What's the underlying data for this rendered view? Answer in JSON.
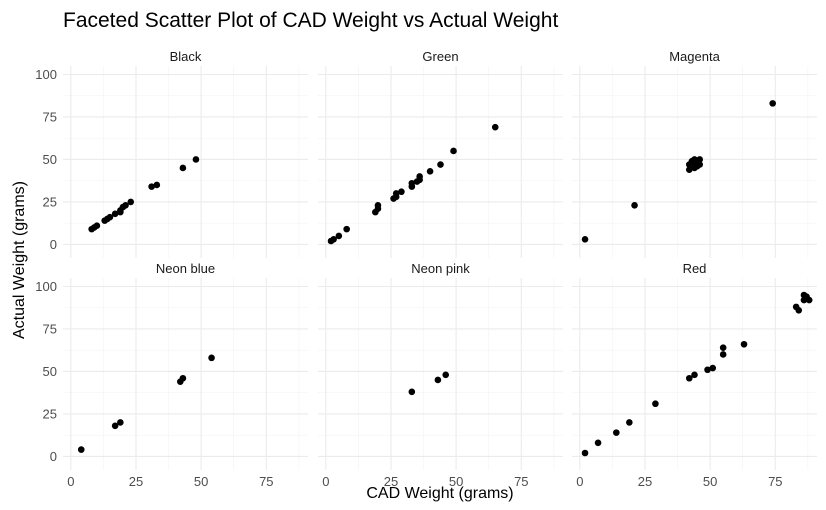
{
  "chart_data": {
    "type": "scatter",
    "title": "Faceted Scatter Plot of CAD Weight vs Actual Weight",
    "xlabel": "CAD Weight (grams)",
    "ylabel": "Actual Weight (grams)",
    "xlim": [
      -3,
      91
    ],
    "ylim": [
      -8,
      105
    ],
    "xticks": [
      0,
      25,
      50,
      75
    ],
    "yticks": [
      0,
      25,
      50,
      75,
      100
    ],
    "grid": true,
    "point_color": "#000000",
    "facets": [
      {
        "name": "Black",
        "points": [
          [
            8,
            9
          ],
          [
            9,
            10
          ],
          [
            10,
            11
          ],
          [
            13,
            14
          ],
          [
            14,
            15
          ],
          [
            15,
            16
          ],
          [
            17,
            18
          ],
          [
            19,
            19
          ],
          [
            19,
            20
          ],
          [
            20,
            22
          ],
          [
            21,
            23
          ],
          [
            23,
            25
          ],
          [
            31,
            34
          ],
          [
            33,
            35
          ],
          [
            43,
            45
          ],
          [
            48,
            50
          ]
        ]
      },
      {
        "name": "Green",
        "points": [
          [
            2,
            2
          ],
          [
            3,
            3
          ],
          [
            5,
            5
          ],
          [
            8,
            9
          ],
          [
            19,
            19
          ],
          [
            20,
            21
          ],
          [
            20,
            23
          ],
          [
            26,
            27
          ],
          [
            27,
            28
          ],
          [
            27,
            30
          ],
          [
            29,
            31
          ],
          [
            33,
            34
          ],
          [
            33,
            36
          ],
          [
            35,
            37
          ],
          [
            36,
            38
          ],
          [
            36,
            40
          ],
          [
            40,
            43
          ],
          [
            44,
            47
          ],
          [
            49,
            55
          ],
          [
            65,
            69
          ]
        ]
      },
      {
        "name": "Magenta",
        "points": [
          [
            2,
            3
          ],
          [
            21,
            23
          ],
          [
            42,
            44
          ],
          [
            42,
            47
          ],
          [
            43,
            46
          ],
          [
            43,
            49
          ],
          [
            44,
            45
          ],
          [
            44,
            48
          ],
          [
            44,
            50
          ],
          [
            45,
            46
          ],
          [
            46,
            47
          ],
          [
            46,
            50
          ],
          [
            74,
            83
          ]
        ]
      },
      {
        "name": "Neon blue",
        "points": [
          [
            4,
            4
          ],
          [
            17,
            18
          ],
          [
            19,
            20
          ],
          [
            42,
            44
          ],
          [
            43,
            46
          ],
          [
            54,
            58
          ]
        ]
      },
      {
        "name": "Neon pink",
        "points": [
          [
            33,
            38
          ],
          [
            43,
            45
          ],
          [
            46,
            48
          ]
        ]
      },
      {
        "name": "Red",
        "points": [
          [
            2,
            2
          ],
          [
            7,
            8
          ],
          [
            14,
            14
          ],
          [
            19,
            20
          ],
          [
            29,
            31
          ],
          [
            42,
            46
          ],
          [
            44,
            48
          ],
          [
            49,
            51
          ],
          [
            51,
            52
          ],
          [
            55,
            60
          ],
          [
            55,
            64
          ],
          [
            63,
            66
          ],
          [
            83,
            88
          ],
          [
            84,
            86
          ],
          [
            86,
            92
          ],
          [
            86,
            95
          ],
          [
            87,
            94
          ],
          [
            88,
            92
          ]
        ]
      }
    ]
  }
}
